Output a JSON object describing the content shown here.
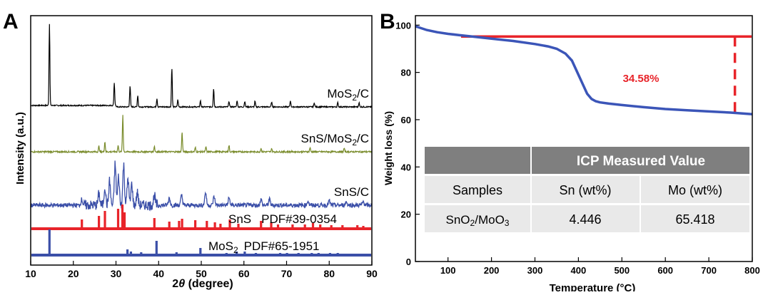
{
  "chart_data": [
    {
      "panel_label": "A",
      "type": "line",
      "xlabel_prefix": "2",
      "xlabel_theta": "θ",
      "xlabel_suffix": " (degree)",
      "ylabel": "Intensity (a.u.)",
      "xlim": [
        10,
        90
      ],
      "xticks": [
        "10",
        "20",
        "30",
        "40",
        "50",
        "60",
        "70",
        "80",
        "90"
      ],
      "series": [
        {
          "name_main": "MoS",
          "name_sub": "2",
          "name_tail": "/C",
          "color": "#000000",
          "peaks": [
            [
              14.4,
              115
            ],
            [
              29.6,
              32
            ],
            [
              33.3,
              30
            ],
            [
              35.1,
              16
            ],
            [
              39.6,
              12
            ],
            [
              43.1,
              55
            ],
            [
              44.5,
              10
            ],
            [
              49.8,
              9
            ],
            [
              52.9,
              26
            ],
            [
              56.5,
              8
            ],
            [
              58.4,
              9
            ],
            [
              60.2,
              8
            ],
            [
              62.6,
              8
            ],
            [
              66.5,
              7
            ],
            [
              70.9,
              9
            ],
            [
              76.5,
              6
            ],
            [
              82.0,
              6
            ],
            [
              87.0,
              6
            ]
          ]
        },
        {
          "name_main": "SnS/MoS",
          "name_sub": "2",
          "name_tail": "/C",
          "color": "#7a8c2c",
          "peaks": [
            [
              26.0,
              8
            ],
            [
              27.4,
              14
            ],
            [
              30.5,
              9
            ],
            [
              31.6,
              52
            ],
            [
              39.0,
              8
            ],
            [
              45.5,
              28
            ],
            [
              48.6,
              6
            ],
            [
              51.1,
              7
            ],
            [
              56.5,
              9
            ],
            [
              64.0,
              5
            ],
            [
              66.5,
              5
            ],
            [
              75.5,
              6
            ],
            [
              83.5,
              5
            ]
          ]
        },
        {
          "name_main": "SnS/C",
          "name_sub": "",
          "name_tail": "",
          "color": "#3b4fa8",
          "peaks": [
            [
              22.0,
              9
            ],
            [
              26.0,
              16
            ],
            [
              27.4,
              26
            ],
            [
              28.5,
              34
            ],
            [
              29.8,
              58
            ],
            [
              30.6,
              40
            ],
            [
              31.8,
              56
            ],
            [
              32.8,
              38
            ],
            [
              33.7,
              30
            ],
            [
              35.0,
              18
            ],
            [
              39.0,
              14
            ],
            [
              42.5,
              10
            ],
            [
              45.4,
              14
            ],
            [
              51.0,
              18
            ],
            [
              53.0,
              12
            ],
            [
              56.5,
              10
            ],
            [
              64.0,
              8
            ],
            [
              66.0,
              8
            ],
            [
              75.0,
              6
            ],
            [
              80.0,
              6
            ],
            [
              84.0,
              5
            ],
            [
              88.0,
              5
            ]
          ]
        }
      ],
      "references": [
        {
          "name_main": "SnS",
          "name_sub": "",
          "pdf": "PDF#39-0354",
          "color": "#e8242a",
          "lines": [
            [
              22.0,
              13
            ],
            [
              26.0,
              18
            ],
            [
              27.4,
              25
            ],
            [
              30.5,
              28
            ],
            [
              31.5,
              34
            ],
            [
              32.0,
              23
            ],
            [
              39.0,
              15
            ],
            [
              42.5,
              10
            ],
            [
              44.8,
              11
            ],
            [
              45.5,
              14
            ],
            [
              48.6,
              12
            ],
            [
              51.3,
              11
            ],
            [
              53.2,
              9
            ],
            [
              54.5,
              7
            ],
            [
              56.7,
              13
            ],
            [
              58.7,
              7
            ],
            [
              64.0,
              11
            ],
            [
              66.4,
              9
            ],
            [
              68.0,
              6
            ],
            [
              71.4,
              6
            ],
            [
              74.3,
              6
            ],
            [
              76.2,
              8
            ],
            [
              77.9,
              6
            ],
            [
              80.5,
              5
            ],
            [
              83.1,
              5
            ],
            [
              86.6,
              5
            ],
            [
              88.0,
              4
            ]
          ]
        },
        {
          "name_main": "MoS",
          "name_sub": "2",
          "pdf": "PDF#65-1951",
          "color": "#3b4fa8",
          "lines": [
            [
              14.4,
              36
            ],
            [
              32.7,
              8
            ],
            [
              33.5,
              5
            ],
            [
              35.9,
              4
            ],
            [
              39.5,
              20
            ],
            [
              44.2,
              4
            ],
            [
              49.8,
              10
            ],
            [
              55.9,
              3
            ],
            [
              58.3,
              5
            ],
            [
              60.2,
              5
            ],
            [
              62.8,
              3
            ],
            [
              68.5,
              3
            ],
            [
              70.1,
              3
            ],
            [
              72.8,
              3
            ],
            [
              75.9,
              3
            ],
            [
              77.5,
              3
            ],
            [
              80.2,
              3
            ],
            [
              82.0,
              3
            ]
          ]
        }
      ]
    },
    {
      "panel_label": "B",
      "type": "line",
      "xlabel": "Temperature (°C)",
      "ylabel": "Weight loss (%)",
      "xlim": [
        25,
        800
      ],
      "ylim": [
        0,
        104
      ],
      "xticks": [
        100,
        200,
        300,
        400,
        500,
        600,
        700,
        800
      ],
      "yticks": [
        0,
        20,
        40,
        60,
        80,
        100
      ],
      "series": [
        {
          "name": "",
          "color": "#3b55b8",
          "x": [
            25,
            50,
            75,
            100,
            125,
            150,
            200,
            250,
            300,
            330,
            350,
            370,
            385,
            400,
            410,
            420,
            430,
            440,
            450,
            470,
            500,
            550,
            600,
            650,
            700,
            750,
            800
          ],
          "y": [
            99.5,
            98.0,
            97.0,
            96.3,
            95.8,
            95.3,
            94.3,
            93.3,
            92.0,
            91.0,
            90.0,
            88.0,
            85.0,
            79.0,
            75.0,
            71.0,
            68.8,
            67.8,
            67.3,
            66.8,
            66.2,
            65.3,
            64.5,
            64.0,
            63.5,
            63.0,
            62.3
          ]
        }
      ],
      "reference_line": {
        "y": 95.2,
        "x_start": 130,
        "x_end": 800,
        "color": "#e8242a"
      },
      "drop_line": {
        "x": 760,
        "y_top": 95.2,
        "y_bottom": 62.6,
        "color": "#e8242a"
      },
      "annotation": "34.58%",
      "table": {
        "header": "ICP Measured Value",
        "columns": [
          "Samples",
          "Sn (wt%)",
          "Mo (wt%)"
        ],
        "row": {
          "sample_main": "SnO",
          "sample_sub1": "2",
          "sample_mid": "/MoO",
          "sample_sub2": "3",
          "sn": "4.446",
          "mo": "65.418"
        }
      }
    }
  ]
}
